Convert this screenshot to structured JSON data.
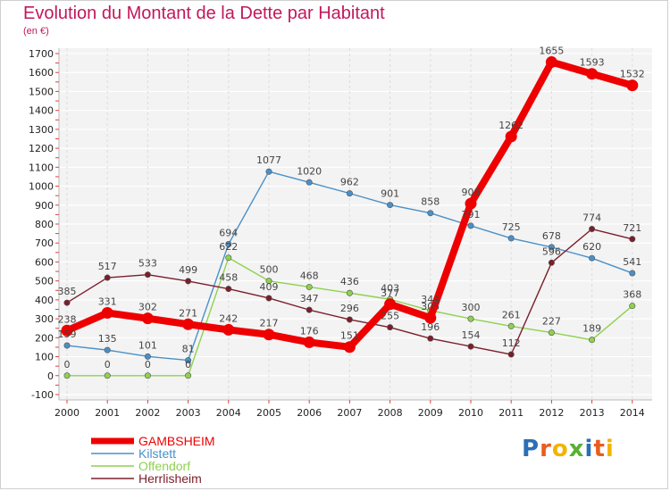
{
  "title": "Evolution du Montant de la Dette par Habitant",
  "subtitle": "(en €)",
  "logo": {
    "text": [
      "P",
      "r",
      "o",
      "x",
      "i",
      "t",
      "i"
    ],
    "colors": [
      "#2b6fb6",
      "#e85d1f",
      "#f2b400",
      "#5ab030",
      "#2b6fb6",
      "#e85d1f",
      "#f2b400"
    ]
  },
  "chart_data": {
    "type": "line",
    "x": [
      "2000",
      "2001",
      "2002",
      "2003",
      "2004",
      "2005",
      "2006",
      "2007",
      "2008",
      "2009",
      "2010",
      "2011",
      "2012",
      "2013",
      "2014"
    ],
    "y_ticks": [
      -100,
      0,
      100,
      200,
      300,
      400,
      500,
      600,
      700,
      800,
      900,
      1000,
      1100,
      1200,
      1300,
      1400,
      1500,
      1600,
      1700
    ],
    "ylim": [
      -100,
      1700
    ],
    "legend_position": "bottom-left",
    "series": [
      {
        "name": "GAMBSHEIM",
        "color": "#ee0000",
        "highlight": true,
        "values": [
          238,
          331,
          302,
          271,
          242,
          217,
          176,
          151,
          377,
          305,
          908,
          1262,
          1655,
          1593,
          1532
        ],
        "labels": [
          "238",
          "331",
          "302",
          "271",
          "242",
          "217",
          "176",
          "151",
          "377",
          "305",
          "908",
          "1262",
          "1655",
          "1593",
          "1532"
        ]
      },
      {
        "name": "Kilstett",
        "color": "#4a90c8",
        "highlight": false,
        "values": [
          159,
          135,
          101,
          81,
          694,
          1077,
          1020,
          962,
          901,
          858,
          791,
          725,
          678,
          620,
          541
        ],
        "labels": [
          "159",
          "135",
          "101",
          "81",
          "694",
          "1077",
          "1020",
          "962",
          "901",
          "858",
          "791",
          "725",
          "678",
          "620",
          "541"
        ]
      },
      {
        "name": "Offendorf",
        "color": "#8fd14f",
        "highlight": false,
        "values": [
          0,
          0,
          0,
          0,
          622,
          500,
          468,
          436,
          403,
          344,
          300,
          261,
          227,
          189,
          368
        ],
        "labels": [
          "0",
          "0",
          "0",
          "0",
          "622",
          "500",
          "468",
          "436",
          "403",
          "344",
          "300",
          "261",
          "227",
          "189",
          "368"
        ]
      },
      {
        "name": "Herrlisheim",
        "color": "#7b1e2a",
        "highlight": false,
        "values": [
          385,
          517,
          533,
          499,
          458,
          409,
          347,
          296,
          255,
          196,
          154,
          112,
          596,
          774,
          721
        ],
        "labels": [
          "385",
          "517",
          "533",
          "499",
          "458",
          "409",
          "347",
          "296",
          "255",
          "196",
          "154",
          "112",
          "596",
          "774",
          "721"
        ]
      }
    ]
  }
}
